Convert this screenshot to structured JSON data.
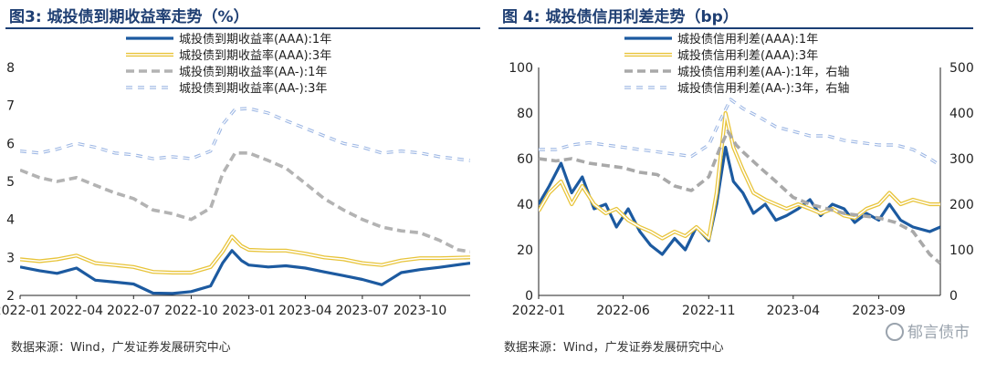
{
  "source_text": "数据来源：Wind，广发证券发展研究中心",
  "watermark_text": "郁言债市",
  "chart_data": [
    {
      "type": "line",
      "title": "图3:  城投债到期收益率走势（%）",
      "ylim": [
        2,
        8
      ],
      "yticks": [
        "2",
        "3",
        "4",
        "5",
        "6",
        "7",
        "8"
      ],
      "xlim": [
        "2022-01-01",
        "2023-12-20"
      ],
      "xticks": [
        "2022-01",
        "2022-04",
        "2022-07",
        "2022-10",
        "2023-01",
        "2023-04",
        "2023-07",
        "2023-10"
      ],
      "series": [
        {
          "name": "城投债到期收益率(AAA):1年",
          "color": "#1c5aa0",
          "style": "solid-thick",
          "points": [
            [
              "2022-01-01",
              2.75
            ],
            [
              "2022-02-01",
              2.65
            ],
            [
              "2022-03-01",
              2.58
            ],
            [
              "2022-04-01",
              2.72
            ],
            [
              "2022-05-01",
              2.4
            ],
            [
              "2022-06-01",
              2.35
            ],
            [
              "2022-07-01",
              2.3
            ],
            [
              "2022-08-01",
              2.06
            ],
            [
              "2022-09-01",
              2.05
            ],
            [
              "2022-10-01",
              2.1
            ],
            [
              "2022-11-01",
              2.25
            ],
            [
              "2022-11-20",
              2.85
            ],
            [
              "2022-12-05",
              3.18
            ],
            [
              "2022-12-20",
              2.92
            ],
            [
              "2023-01-01",
              2.8
            ],
            [
              "2023-02-01",
              2.75
            ],
            [
              "2023-03-01",
              2.78
            ],
            [
              "2023-04-01",
              2.72
            ],
            [
              "2023-05-01",
              2.62
            ],
            [
              "2023-06-01",
              2.52
            ],
            [
              "2023-07-01",
              2.42
            ],
            [
              "2023-08-01",
              2.28
            ],
            [
              "2023-09-01",
              2.6
            ],
            [
              "2023-10-01",
              2.68
            ],
            [
              "2023-11-01",
              2.74
            ],
            [
              "2023-12-20",
              2.85
            ]
          ]
        },
        {
          "name": "城投债到期收益率(AAA):3年",
          "color": "#e8c43a",
          "style": "double",
          "points": [
            [
              "2022-01-01",
              2.95
            ],
            [
              "2022-02-01",
              2.9
            ],
            [
              "2022-03-01",
              2.95
            ],
            [
              "2022-04-01",
              3.05
            ],
            [
              "2022-05-01",
              2.85
            ],
            [
              "2022-06-01",
              2.8
            ],
            [
              "2022-07-01",
              2.75
            ],
            [
              "2022-08-01",
              2.62
            ],
            [
              "2022-09-01",
              2.6
            ],
            [
              "2022-10-01",
              2.6
            ],
            [
              "2022-11-01",
              2.75
            ],
            [
              "2022-11-20",
              3.15
            ],
            [
              "2022-12-05",
              3.55
            ],
            [
              "2022-12-20",
              3.3
            ],
            [
              "2023-01-01",
              3.2
            ],
            [
              "2023-02-01",
              3.18
            ],
            [
              "2023-03-01",
              3.18
            ],
            [
              "2023-04-01",
              3.1
            ],
            [
              "2023-05-01",
              3.0
            ],
            [
              "2023-06-01",
              2.95
            ],
            [
              "2023-07-01",
              2.85
            ],
            [
              "2023-08-01",
              2.8
            ],
            [
              "2023-09-01",
              2.92
            ],
            [
              "2023-10-01",
              2.98
            ],
            [
              "2023-11-01",
              2.98
            ],
            [
              "2023-12-20",
              3.0
            ]
          ]
        },
        {
          "name": "城投债到期收益率(AA-):1年",
          "color": "#b3b3b3",
          "style": "dashed",
          "points": [
            [
              "2022-01-01",
              5.3
            ],
            [
              "2022-02-01",
              5.1
            ],
            [
              "2022-03-01",
              5.0
            ],
            [
              "2022-04-01",
              5.1
            ],
            [
              "2022-05-01",
              4.9
            ],
            [
              "2022-06-01",
              4.7
            ],
            [
              "2022-07-01",
              4.55
            ],
            [
              "2022-08-01",
              4.25
            ],
            [
              "2022-09-01",
              4.15
            ],
            [
              "2022-10-01",
              4.0
            ],
            [
              "2022-11-01",
              4.3
            ],
            [
              "2022-11-20",
              5.2
            ],
            [
              "2022-12-10",
              5.75
            ],
            [
              "2023-01-01",
              5.75
            ],
            [
              "2023-02-01",
              5.55
            ],
            [
              "2023-03-01",
              5.35
            ],
            [
              "2023-04-01",
              4.95
            ],
            [
              "2023-05-01",
              4.55
            ],
            [
              "2023-06-01",
              4.25
            ],
            [
              "2023-07-01",
              4.0
            ],
            [
              "2023-08-01",
              3.8
            ],
            [
              "2023-09-01",
              3.7
            ],
            [
              "2023-10-01",
              3.65
            ],
            [
              "2023-11-01",
              3.45
            ],
            [
              "2023-12-01",
              3.2
            ],
            [
              "2023-12-20",
              3.15
            ]
          ]
        },
        {
          "name": "城投债到期收益率(AA-):3年",
          "color": "#9db7e4",
          "style": "double-dashed",
          "points": [
            [
              "2022-01-01",
              5.8
            ],
            [
              "2022-02-01",
              5.75
            ],
            [
              "2022-03-01",
              5.85
            ],
            [
              "2022-04-01",
              6.0
            ],
            [
              "2022-05-01",
              5.9
            ],
            [
              "2022-06-01",
              5.75
            ],
            [
              "2022-07-01",
              5.7
            ],
            [
              "2022-08-01",
              5.6
            ],
            [
              "2022-09-01",
              5.65
            ],
            [
              "2022-10-01",
              5.6
            ],
            [
              "2022-11-01",
              5.8
            ],
            [
              "2022-11-20",
              6.5
            ],
            [
              "2022-12-10",
              6.9
            ],
            [
              "2023-01-01",
              6.92
            ],
            [
              "2023-02-01",
              6.8
            ],
            [
              "2023-03-01",
              6.6
            ],
            [
              "2023-04-01",
              6.4
            ],
            [
              "2023-05-01",
              6.2
            ],
            [
              "2023-06-01",
              6.0
            ],
            [
              "2023-07-01",
              5.9
            ],
            [
              "2023-08-01",
              5.75
            ],
            [
              "2023-09-01",
              5.8
            ],
            [
              "2023-10-01",
              5.75
            ],
            [
              "2023-11-01",
              5.65
            ],
            [
              "2023-12-20",
              5.55
            ]
          ]
        }
      ]
    },
    {
      "type": "line",
      "title": "图 4:  城投债信用利差走势（bp）",
      "ylim": [
        0,
        100
      ],
      "yticks": [
        "0",
        "20",
        "40",
        "60",
        "80",
        "100"
      ],
      "y2lim": [
        0,
        500
      ],
      "y2ticks": [
        "0",
        "100",
        "200",
        "300",
        "400",
        "500"
      ],
      "xlim": [
        "2022-01-01",
        "2023-12-20"
      ],
      "xticks": [
        "2022-01",
        "2022-06",
        "2022-11",
        "2023-04",
        "2023-09"
      ],
      "series": [
        {
          "name": "城投债信用利差(AAA):1年",
          "color": "#1c5aa0",
          "style": "solid-thick",
          "axis": "left",
          "points": [
            [
              "2022-01-01",
              40
            ],
            [
              "2022-01-20",
              48
            ],
            [
              "2022-02-10",
              58
            ],
            [
              "2022-03-01",
              45
            ],
            [
              "2022-03-20",
              52
            ],
            [
              "2022-04-10",
              38
            ],
            [
              "2022-05-01",
              40
            ],
            [
              "2022-05-20",
              30
            ],
            [
              "2022-06-10",
              38
            ],
            [
              "2022-07-01",
              28
            ],
            [
              "2022-07-20",
              22
            ],
            [
              "2022-08-10",
              18
            ],
            [
              "2022-09-01",
              25
            ],
            [
              "2022-09-20",
              20
            ],
            [
              "2022-10-10",
              30
            ],
            [
              "2022-11-01",
              24
            ],
            [
              "2022-11-15",
              40
            ],
            [
              "2022-12-01",
              65
            ],
            [
              "2022-12-15",
              50
            ],
            [
              "2023-01-01",
              45
            ],
            [
              "2023-01-20",
              36
            ],
            [
              "2023-02-10",
              40
            ],
            [
              "2023-03-01",
              33
            ],
            [
              "2023-03-20",
              35
            ],
            [
              "2023-04-10",
              38
            ],
            [
              "2023-05-01",
              42
            ],
            [
              "2023-05-20",
              35
            ],
            [
              "2023-06-10",
              40
            ],
            [
              "2023-07-01",
              38
            ],
            [
              "2023-07-20",
              32
            ],
            [
              "2023-08-10",
              36
            ],
            [
              "2023-09-01",
              33
            ],
            [
              "2023-09-20",
              40
            ],
            [
              "2023-10-10",
              33
            ],
            [
              "2023-11-01",
              30
            ],
            [
              "2023-12-01",
              28
            ],
            [
              "2023-12-20",
              30
            ]
          ]
        },
        {
          "name": "城投债信用利差(AAA):3年",
          "color": "#e8c43a",
          "style": "double",
          "axis": "left",
          "points": [
            [
              "2022-01-01",
              37
            ],
            [
              "2022-01-20",
              45
            ],
            [
              "2022-02-10",
              50
            ],
            [
              "2022-03-01",
              40
            ],
            [
              "2022-03-20",
              48
            ],
            [
              "2022-04-10",
              40
            ],
            [
              "2022-05-01",
              36
            ],
            [
              "2022-05-20",
              38
            ],
            [
              "2022-06-10",
              33
            ],
            [
              "2022-07-01",
              30
            ],
            [
              "2022-07-20",
              28
            ],
            [
              "2022-08-10",
              25
            ],
            [
              "2022-09-01",
              28
            ],
            [
              "2022-09-20",
              26
            ],
            [
              "2022-10-10",
              30
            ],
            [
              "2022-11-01",
              25
            ],
            [
              "2022-11-15",
              45
            ],
            [
              "2022-12-01",
              80
            ],
            [
              "2022-12-15",
              65
            ],
            [
              "2023-01-01",
              55
            ],
            [
              "2023-01-20",
              45
            ],
            [
              "2023-02-10",
              42
            ],
            [
              "2023-03-01",
              40
            ],
            [
              "2023-03-20",
              38
            ],
            [
              "2023-04-10",
              40
            ],
            [
              "2023-05-01",
              38
            ],
            [
              "2023-05-20",
              36
            ],
            [
              "2023-06-10",
              38
            ],
            [
              "2023-07-01",
              35
            ],
            [
              "2023-07-20",
              34
            ],
            [
              "2023-08-10",
              38
            ],
            [
              "2023-09-01",
              40
            ],
            [
              "2023-09-20",
              45
            ],
            [
              "2023-10-10",
              40
            ],
            [
              "2023-11-01",
              42
            ],
            [
              "2023-12-01",
              40
            ],
            [
              "2023-12-20",
              40
            ]
          ]
        },
        {
          "name": "城投债信用利差(AA-):1年，右轴",
          "color": "#a9a9a9",
          "style": "dashed",
          "axis": "right",
          "points": [
            [
              "2022-01-01",
              300
            ],
            [
              "2022-02-01",
              295
            ],
            [
              "2022-03-01",
              300
            ],
            [
              "2022-04-01",
              290
            ],
            [
              "2022-05-01",
              285
            ],
            [
              "2022-06-01",
              280
            ],
            [
              "2022-07-01",
              270
            ],
            [
              "2022-08-01",
              265
            ],
            [
              "2022-09-01",
              240
            ],
            [
              "2022-10-01",
              230
            ],
            [
              "2022-11-01",
              260
            ],
            [
              "2022-11-20",
              320
            ],
            [
              "2022-12-05",
              360
            ],
            [
              "2022-12-20",
              330
            ],
            [
              "2023-01-01",
              315
            ],
            [
              "2023-02-01",
              280
            ],
            [
              "2023-03-01",
              250
            ],
            [
              "2023-04-01",
              215
            ],
            [
              "2023-05-01",
              200
            ],
            [
              "2023-06-01",
              190
            ],
            [
              "2023-07-01",
              180
            ],
            [
              "2023-08-01",
              175
            ],
            [
              "2023-09-01",
              170
            ],
            [
              "2023-10-01",
              160
            ],
            [
              "2023-11-01",
              140
            ],
            [
              "2023-12-01",
              90
            ],
            [
              "2023-12-20",
              70
            ]
          ]
        },
        {
          "name": "城投债信用利差(AA-):3年，右轴",
          "color": "#9db7e4",
          "style": "double-dashed",
          "axis": "right",
          "points": [
            [
              "2022-01-01",
              320
            ],
            [
              "2022-02-01",
              320
            ],
            [
              "2022-03-01",
              330
            ],
            [
              "2022-04-01",
              335
            ],
            [
              "2022-05-01",
              330
            ],
            [
              "2022-06-01",
              325
            ],
            [
              "2022-07-01",
              320
            ],
            [
              "2022-08-01",
              315
            ],
            [
              "2022-09-01",
              310
            ],
            [
              "2022-10-01",
              305
            ],
            [
              "2022-11-01",
              330
            ],
            [
              "2022-11-20",
              380
            ],
            [
              "2022-12-10",
              430
            ],
            [
              "2023-01-01",
              410
            ],
            [
              "2023-02-01",
              390
            ],
            [
              "2023-03-01",
              370
            ],
            [
              "2023-04-01",
              360
            ],
            [
              "2023-05-01",
              350
            ],
            [
              "2023-06-01",
              350
            ],
            [
              "2023-07-01",
              340
            ],
            [
              "2023-08-01",
              335
            ],
            [
              "2023-09-01",
              330
            ],
            [
              "2023-10-01",
              330
            ],
            [
              "2023-11-01",
              320
            ],
            [
              "2023-12-01",
              300
            ],
            [
              "2023-12-20",
              285
            ]
          ]
        }
      ]
    }
  ]
}
